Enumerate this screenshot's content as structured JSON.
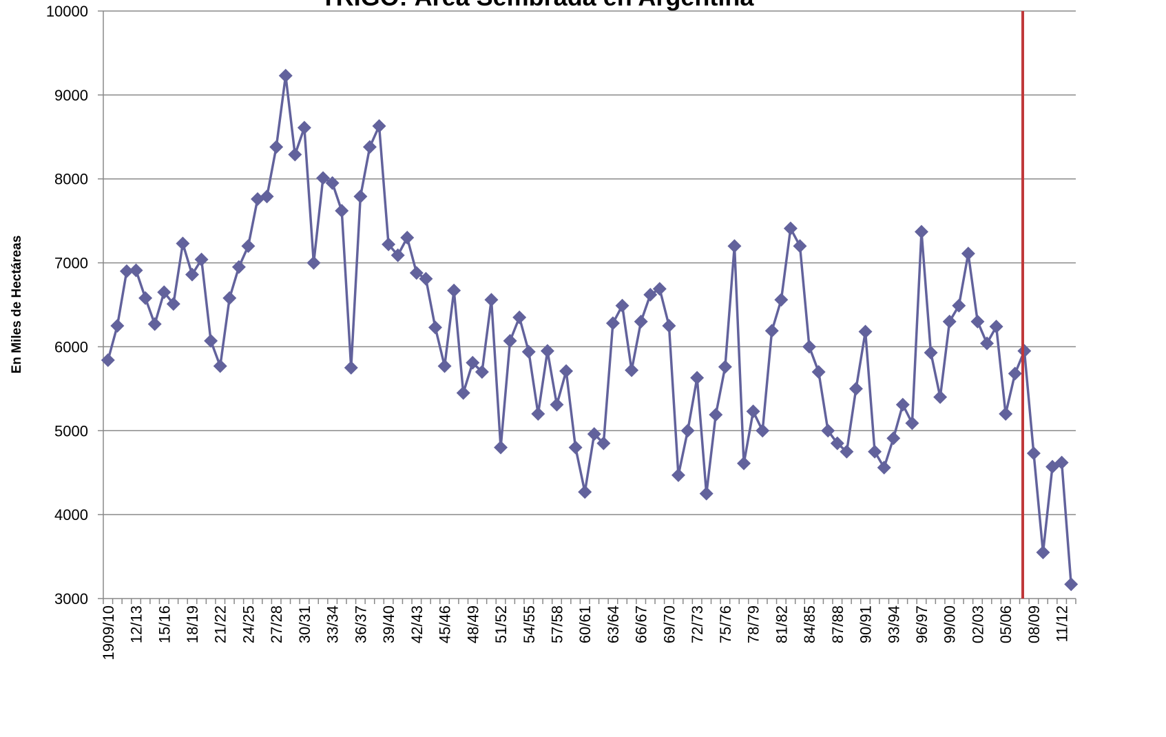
{
  "chart_data": {
    "type": "line",
    "title": "TRIGO: Área Sembrada en Argentina",
    "ylabel": "En Miles de Hectáreas",
    "categories": [
      "1909/10",
      null,
      null,
      "12/13",
      null,
      null,
      "15/16",
      null,
      null,
      "18/19",
      null,
      null,
      "21/22",
      null,
      null,
      "24/25",
      null,
      null,
      "27/28",
      null,
      null,
      "30/31",
      null,
      null,
      "33/34",
      null,
      null,
      "36/37",
      null,
      null,
      "39/40",
      null,
      null,
      "42/43",
      null,
      null,
      "45/46",
      null,
      null,
      "48/49",
      null,
      null,
      "51/52",
      null,
      null,
      "54/55",
      null,
      null,
      "57/58",
      null,
      null,
      "60/61",
      null,
      null,
      "63/64",
      null,
      null,
      "66/67",
      null,
      null,
      "69/70",
      null,
      null,
      "72/73",
      null,
      null,
      "75/76",
      null,
      null,
      "78/79",
      null,
      null,
      "81/82",
      null,
      null,
      "84/85",
      null,
      null,
      "87/88",
      null,
      null,
      "90/91",
      null,
      null,
      "93/94",
      null,
      null,
      "96/97",
      null,
      null,
      "99/00",
      null,
      null,
      "02/03",
      null,
      null,
      "05/06",
      null,
      null,
      "08/09",
      null,
      null,
      "11/12",
      null
    ],
    "series": [
      {
        "name": "Área sembrada",
        "color": "#62629c",
        "values": [
          5840,
          6250,
          6900,
          6910,
          6580,
          6270,
          6650,
          6510,
          7230,
          6860,
          7040,
          6070,
          5770,
          6580,
          6950,
          7200,
          7760,
          7790,
          8380,
          9230,
          8290,
          8610,
          7000,
          8010,
          7950,
          7620,
          5750,
          7790,
          8380,
          8630,
          7220,
          7090,
          7300,
          6880,
          6810,
          6230,
          5770,
          6670,
          5450,
          5810,
          5700,
          6560,
          4800,
          6070,
          6350,
          5940,
          5200,
          5950,
          5310,
          5710,
          4800,
          4270,
          4960,
          4850,
          6280,
          6490,
          5720,
          6300,
          6620,
          6690,
          6250,
          4470,
          5000,
          5630,
          4250,
          5190,
          5760,
          7200,
          4610,
          5230,
          5000,
          6190,
          6560,
          7410,
          7200,
          6000,
          5700,
          5000,
          4850,
          4750,
          5500,
          6180,
          4750,
          4560,
          4910,
          5310,
          5090,
          7370,
          5930,
          5400,
          6300,
          6490,
          7110,
          6300,
          6040,
          6240,
          5200,
          5680,
          5950,
          4730,
          3550,
          4570,
          4620,
          3170
        ]
      }
    ],
    "ylim": [
      3000,
      10000
    ],
    "yticks": [
      3000,
      4000,
      5000,
      6000,
      7000,
      8000,
      9000,
      10000
    ],
    "grid": true
  }
}
